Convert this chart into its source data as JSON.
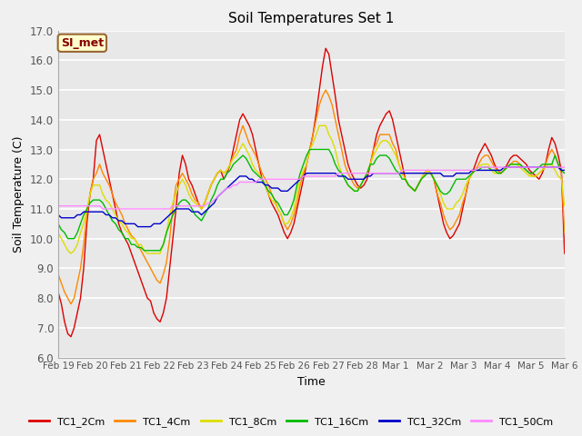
{
  "title": "Soil Temperatures Set 1",
  "xlabel": "Time",
  "ylabel": "Soil Temperature (C)",
  "ylim": [
    6.0,
    17.0
  ],
  "yticks": [
    6.0,
    7.0,
    8.0,
    9.0,
    10.0,
    11.0,
    12.0,
    13.0,
    14.0,
    15.0,
    16.0,
    17.0
  ],
  "fig_bg": "#f0f0f0",
  "plot_bg": "#e8e8e8",
  "grid_color": "#ffffff",
  "annotation_text": "SI_met",
  "annotation_bg": "#ffffcc",
  "annotation_border": "#996633",
  "series_colors": {
    "TC1_2Cm": "#dd0000",
    "TC1_4Cm": "#ff8800",
    "TC1_8Cm": "#dddd00",
    "TC1_16Cm": "#00bb00",
    "TC1_32Cm": "#0000cc",
    "TC1_50Cm": "#ff88ff"
  },
  "xtick_labels": [
    "Feb 19",
    "Feb 20",
    "Feb 21",
    "Feb 22",
    "Feb 23",
    "Feb 24",
    "Feb 25",
    "Feb 26",
    "Feb 27",
    "Feb 28",
    "Mar 1",
    "Mar 2",
    "Mar 3",
    "Mar 4",
    "Mar 5",
    "Mar 6"
  ],
  "n_points": 160,
  "TC1_2Cm": [
    8.2,
    7.8,
    7.2,
    6.8,
    6.7,
    7.0,
    7.5,
    8.0,
    9.0,
    10.5,
    11.5,
    12.0,
    13.3,
    13.5,
    13.0,
    12.5,
    12.0,
    11.5,
    11.0,
    10.5,
    10.2,
    10.0,
    9.8,
    9.5,
    9.2,
    8.9,
    8.6,
    8.3,
    8.0,
    7.9,
    7.5,
    7.3,
    7.2,
    7.5,
    8.0,
    9.0,
    10.0,
    11.0,
    12.2,
    12.8,
    12.5,
    12.0,
    11.8,
    11.5,
    11.2,
    11.0,
    11.2,
    11.5,
    11.8,
    12.0,
    12.2,
    12.3,
    12.0,
    12.2,
    12.5,
    13.0,
    13.5,
    14.0,
    14.2,
    14.0,
    13.8,
    13.5,
    13.0,
    12.5,
    12.0,
    11.8,
    11.5,
    11.2,
    11.0,
    10.8,
    10.5,
    10.2,
    10.0,
    10.2,
    10.5,
    11.0,
    11.5,
    12.0,
    12.5,
    13.0,
    13.5,
    14.2,
    15.0,
    15.8,
    16.4,
    16.2,
    15.5,
    14.8,
    14.0,
    13.5,
    13.0,
    12.5,
    12.2,
    12.0,
    11.8,
    11.7,
    11.8,
    12.0,
    12.5,
    13.0,
    13.5,
    13.8,
    14.0,
    14.2,
    14.3,
    14.0,
    13.5,
    13.0,
    12.5,
    12.0,
    11.8,
    11.7,
    11.6,
    11.8,
    12.0,
    12.2,
    12.3,
    12.2,
    12.0,
    11.5,
    11.0,
    10.5,
    10.2,
    10.0,
    10.1,
    10.3,
    10.5,
    11.0,
    11.5,
    12.0,
    12.2,
    12.5,
    12.8,
    13.0,
    13.2,
    13.0,
    12.8,
    12.5,
    12.3,
    12.2,
    12.3,
    12.5,
    12.7,
    12.8,
    12.8,
    12.7,
    12.6,
    12.5,
    12.3,
    12.2,
    12.1,
    12.0,
    12.2,
    12.5,
    13.0,
    13.4,
    13.2,
    12.8,
    12.3,
    9.5
  ],
  "TC1_4Cm": [
    8.8,
    8.5,
    8.2,
    8.0,
    7.8,
    8.0,
    8.5,
    9.0,
    9.8,
    10.8,
    11.5,
    12.0,
    12.2,
    12.5,
    12.2,
    12.0,
    11.8,
    11.5,
    11.2,
    11.0,
    10.8,
    10.5,
    10.3,
    10.1,
    10.0,
    9.8,
    9.6,
    9.4,
    9.2,
    9.0,
    8.8,
    8.6,
    8.5,
    8.8,
    9.2,
    10.0,
    11.0,
    11.8,
    12.0,
    12.2,
    12.0,
    11.8,
    11.5,
    11.3,
    11.2,
    11.0,
    11.2,
    11.5,
    11.8,
    12.0,
    12.2,
    12.3,
    12.2,
    12.3,
    12.5,
    12.8,
    13.0,
    13.5,
    13.8,
    13.5,
    13.2,
    13.0,
    12.8,
    12.5,
    12.2,
    12.0,
    11.8,
    11.5,
    11.3,
    11.0,
    10.8,
    10.5,
    10.3,
    10.5,
    10.8,
    11.2,
    11.8,
    12.2,
    12.5,
    13.0,
    13.5,
    14.0,
    14.5,
    14.8,
    15.0,
    14.8,
    14.5,
    14.0,
    13.5,
    13.0,
    12.5,
    12.2,
    12.0,
    11.8,
    11.7,
    11.8,
    12.0,
    12.2,
    12.5,
    13.0,
    13.2,
    13.5,
    13.5,
    13.5,
    13.5,
    13.2,
    13.0,
    12.5,
    12.2,
    12.0,
    11.8,
    11.7,
    11.6,
    11.8,
    12.0,
    12.2,
    12.3,
    12.2,
    12.0,
    11.5,
    11.2,
    10.8,
    10.5,
    10.3,
    10.4,
    10.6,
    10.8,
    11.2,
    11.5,
    12.0,
    12.2,
    12.3,
    12.5,
    12.7,
    12.8,
    12.8,
    12.6,
    12.4,
    12.3,
    12.2,
    12.3,
    12.4,
    12.5,
    12.6,
    12.6,
    12.5,
    12.4,
    12.3,
    12.2,
    12.1,
    12.1,
    12.2,
    12.3,
    12.5,
    12.8,
    13.0,
    12.8,
    12.5,
    12.2,
    10.2
  ],
  "TC1_8Cm": [
    10.2,
    10.0,
    9.8,
    9.6,
    9.5,
    9.6,
    9.8,
    10.2,
    10.5,
    11.0,
    11.5,
    11.8,
    11.8,
    11.8,
    11.5,
    11.3,
    11.2,
    11.0,
    10.8,
    10.6,
    10.5,
    10.3,
    10.2,
    10.0,
    10.0,
    9.8,
    9.8,
    9.6,
    9.5,
    9.5,
    9.5,
    9.5,
    9.5,
    9.8,
    10.2,
    10.8,
    11.2,
    11.5,
    11.8,
    12.0,
    11.8,
    11.5,
    11.3,
    11.2,
    11.1,
    11.0,
    11.2,
    11.5,
    11.8,
    12.0,
    12.2,
    12.3,
    12.2,
    12.3,
    12.5,
    12.7,
    12.8,
    13.0,
    13.2,
    13.0,
    12.8,
    12.5,
    12.3,
    12.2,
    12.0,
    11.8,
    11.5,
    11.3,
    11.2,
    11.0,
    10.8,
    10.5,
    10.5,
    10.7,
    11.0,
    11.5,
    12.0,
    12.3,
    12.5,
    13.0,
    13.2,
    13.5,
    13.8,
    13.8,
    13.8,
    13.5,
    13.3,
    13.0,
    12.5,
    12.2,
    12.0,
    11.8,
    11.7,
    11.6,
    11.6,
    11.8,
    12.0,
    12.2,
    12.5,
    12.8,
    13.0,
    13.2,
    13.3,
    13.3,
    13.2,
    13.0,
    12.8,
    12.5,
    12.2,
    12.0,
    11.8,
    11.7,
    11.6,
    11.8,
    12.0,
    12.2,
    12.3,
    12.2,
    12.0,
    11.8,
    11.5,
    11.2,
    11.0,
    11.0,
    11.0,
    11.2,
    11.3,
    11.5,
    11.8,
    12.0,
    12.2,
    12.3,
    12.4,
    12.5,
    12.5,
    12.5,
    12.3,
    12.2,
    12.2,
    12.2,
    12.3,
    12.4,
    12.5,
    12.5,
    12.5,
    12.4,
    12.3,
    12.2,
    12.1,
    12.1,
    12.1,
    12.2,
    12.3,
    12.4,
    12.5,
    12.5,
    12.3,
    12.1,
    12.0,
    11.1
  ],
  "TC1_16Cm": [
    10.5,
    10.3,
    10.2,
    10.0,
    10.0,
    10.0,
    10.2,
    10.5,
    10.8,
    11.0,
    11.2,
    11.3,
    11.3,
    11.3,
    11.2,
    11.0,
    10.8,
    10.6,
    10.5,
    10.3,
    10.2,
    10.0,
    10.0,
    9.8,
    9.8,
    9.7,
    9.7,
    9.6,
    9.6,
    9.6,
    9.6,
    9.6,
    9.6,
    9.8,
    10.2,
    10.5,
    10.8,
    11.0,
    11.2,
    11.3,
    11.3,
    11.2,
    11.0,
    10.8,
    10.7,
    10.6,
    10.8,
    11.0,
    11.3,
    11.5,
    11.8,
    12.0,
    12.0,
    12.2,
    12.3,
    12.5,
    12.6,
    12.7,
    12.8,
    12.7,
    12.5,
    12.3,
    12.2,
    12.1,
    12.0,
    11.8,
    11.6,
    11.5,
    11.3,
    11.2,
    11.0,
    10.8,
    10.8,
    11.0,
    11.3,
    11.8,
    12.2,
    12.5,
    12.8,
    13.0,
    13.0,
    13.0,
    13.0,
    13.0,
    13.0,
    13.0,
    12.8,
    12.5,
    12.3,
    12.2,
    12.0,
    11.8,
    11.7,
    11.6,
    11.6,
    11.8,
    12.0,
    12.2,
    12.5,
    12.5,
    12.7,
    12.8,
    12.8,
    12.8,
    12.7,
    12.5,
    12.3,
    12.2,
    12.0,
    12.0,
    11.8,
    11.7,
    11.6,
    11.8,
    12.0,
    12.1,
    12.2,
    12.2,
    12.0,
    11.8,
    11.6,
    11.5,
    11.5,
    11.6,
    11.8,
    12.0,
    12.0,
    12.0,
    12.0,
    12.1,
    12.2,
    12.3,
    12.3,
    12.4,
    12.4,
    12.4,
    12.3,
    12.3,
    12.2,
    12.2,
    12.3,
    12.4,
    12.5,
    12.5,
    12.5,
    12.5,
    12.4,
    12.3,
    12.2,
    12.2,
    12.3,
    12.4,
    12.5,
    12.5,
    12.5,
    12.5,
    12.8,
    12.5,
    12.3,
    12.2
  ],
  "TC1_32Cm": [
    10.8,
    10.7,
    10.7,
    10.7,
    10.7,
    10.7,
    10.8,
    10.8,
    10.9,
    10.9,
    10.9,
    10.9,
    10.9,
    10.9,
    10.9,
    10.8,
    10.8,
    10.7,
    10.7,
    10.6,
    10.6,
    10.5,
    10.5,
    10.5,
    10.5,
    10.4,
    10.4,
    10.4,
    10.4,
    10.4,
    10.5,
    10.5,
    10.5,
    10.6,
    10.7,
    10.8,
    10.9,
    11.0,
    11.0,
    11.0,
    11.0,
    11.0,
    10.9,
    10.9,
    10.9,
    10.8,
    10.9,
    11.0,
    11.1,
    11.2,
    11.4,
    11.5,
    11.6,
    11.7,
    11.8,
    11.9,
    12.0,
    12.1,
    12.1,
    12.1,
    12.0,
    12.0,
    11.9,
    11.9,
    11.9,
    11.8,
    11.8,
    11.7,
    11.7,
    11.7,
    11.6,
    11.6,
    11.6,
    11.7,
    11.8,
    11.9,
    12.0,
    12.1,
    12.2,
    12.2,
    12.2,
    12.2,
    12.2,
    12.2,
    12.2,
    12.2,
    12.2,
    12.2,
    12.1,
    12.1,
    12.1,
    12.0,
    12.0,
    12.0,
    12.0,
    12.0,
    12.0,
    12.1,
    12.1,
    12.2,
    12.2,
    12.2,
    12.2,
    12.2,
    12.2,
    12.2,
    12.2,
    12.2,
    12.2,
    12.2,
    12.2,
    12.2,
    12.2,
    12.2,
    12.2,
    12.2,
    12.2,
    12.2,
    12.2,
    12.2,
    12.2,
    12.1,
    12.1,
    12.1,
    12.1,
    12.2,
    12.2,
    12.2,
    12.2,
    12.2,
    12.3,
    12.3,
    12.3,
    12.3,
    12.3,
    12.3,
    12.3,
    12.3,
    12.3,
    12.3,
    12.4,
    12.4,
    12.4,
    12.4,
    12.4,
    12.4,
    12.4,
    12.4,
    12.4,
    12.4,
    12.4,
    12.4,
    12.4,
    12.4,
    12.4,
    12.4,
    12.4,
    12.4,
    12.3,
    12.3
  ],
  "TC1_50Cm": [
    11.1,
    11.1,
    11.1,
    11.1,
    11.1,
    11.1,
    11.1,
    11.1,
    11.1,
    11.1,
    11.1,
    11.1,
    11.1,
    11.1,
    11.0,
    11.0,
    11.0,
    11.0,
    11.0,
    11.0,
    11.0,
    11.0,
    11.0,
    11.0,
    11.0,
    11.0,
    11.0,
    11.0,
    11.0,
    11.0,
    11.0,
    11.0,
    11.0,
    11.0,
    11.0,
    11.0,
    11.1,
    11.1,
    11.1,
    11.1,
    11.1,
    11.1,
    11.1,
    11.1,
    11.1,
    11.1,
    11.1,
    11.2,
    11.2,
    11.3,
    11.4,
    11.5,
    11.6,
    11.7,
    11.7,
    11.8,
    11.8,
    11.9,
    11.9,
    11.9,
    11.9,
    11.9,
    11.9,
    12.0,
    12.0,
    12.0,
    12.0,
    12.0,
    12.0,
    12.0,
    12.0,
    12.0,
    12.0,
    12.0,
    12.0,
    12.0,
    12.0,
    12.1,
    12.1,
    12.1,
    12.1,
    12.1,
    12.1,
    12.1,
    12.1,
    12.1,
    12.1,
    12.1,
    12.2,
    12.2,
    12.2,
    12.2,
    12.2,
    12.2,
    12.2,
    12.2,
    12.2,
    12.2,
    12.2,
    12.2,
    12.2,
    12.2,
    12.2,
    12.2,
    12.2,
    12.2,
    12.2,
    12.2,
    12.3,
    12.3,
    12.3,
    12.3,
    12.3,
    12.3,
    12.3,
    12.3,
    12.3,
    12.3,
    12.3,
    12.3,
    12.3,
    12.3,
    12.3,
    12.3,
    12.3,
    12.3,
    12.3,
    12.3,
    12.3,
    12.3,
    12.3,
    12.3,
    12.4,
    12.4,
    12.4,
    12.4,
    12.4,
    12.4,
    12.4,
    12.4,
    12.4,
    12.4,
    12.4,
    12.4,
    12.4,
    12.4,
    12.4,
    12.4,
    12.4,
    12.4,
    12.4,
    12.4,
    12.4,
    12.4,
    12.4,
    12.4,
    12.4,
    12.4,
    12.4,
    12.4
  ]
}
